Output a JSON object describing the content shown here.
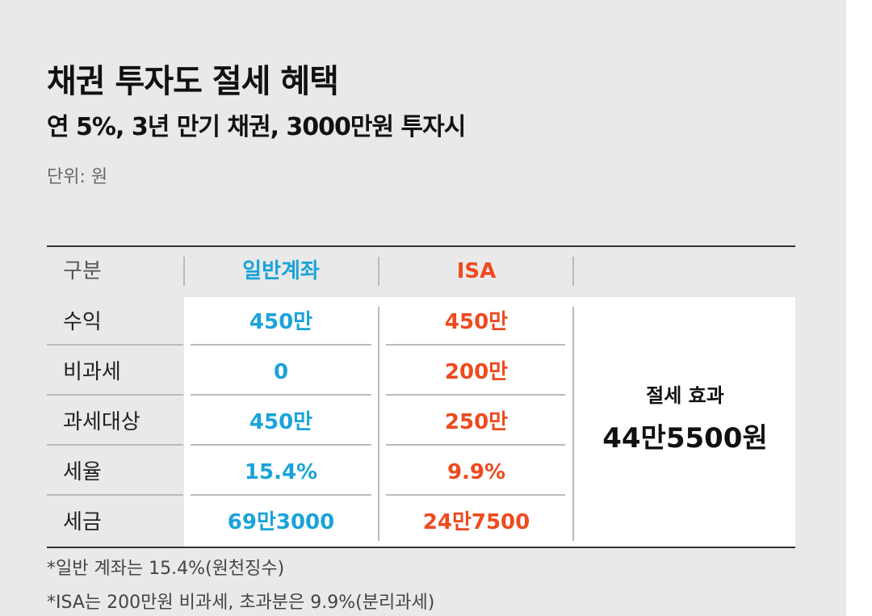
{
  "header": {
    "title": "채권 투자도 절세 혜택",
    "subtitle": "연 5%, 3년 만기 채권, 3000만원 투자시",
    "unit": "단위: 원"
  },
  "table": {
    "columns": [
      "구분",
      "일반계좌",
      "ISA"
    ],
    "rows": [
      [
        "수익",
        "450만",
        "450만"
      ],
      [
        "비과세",
        "0",
        "200만"
      ],
      [
        "과세대상",
        "450만",
        "250만"
      ],
      [
        "세율",
        "15.4%",
        "9.9%"
      ],
      [
        "세금",
        "69만3000",
        "24만7500"
      ]
    ],
    "effect": {
      "label": "절세 효과",
      "value": "44만5500원"
    }
  },
  "notes": [
    "*일반 계좌는 15.4%(원천징수)",
    "*ISA는 200만원 비과세, 초과분은 9.9%(분리과세)"
  ]
}
